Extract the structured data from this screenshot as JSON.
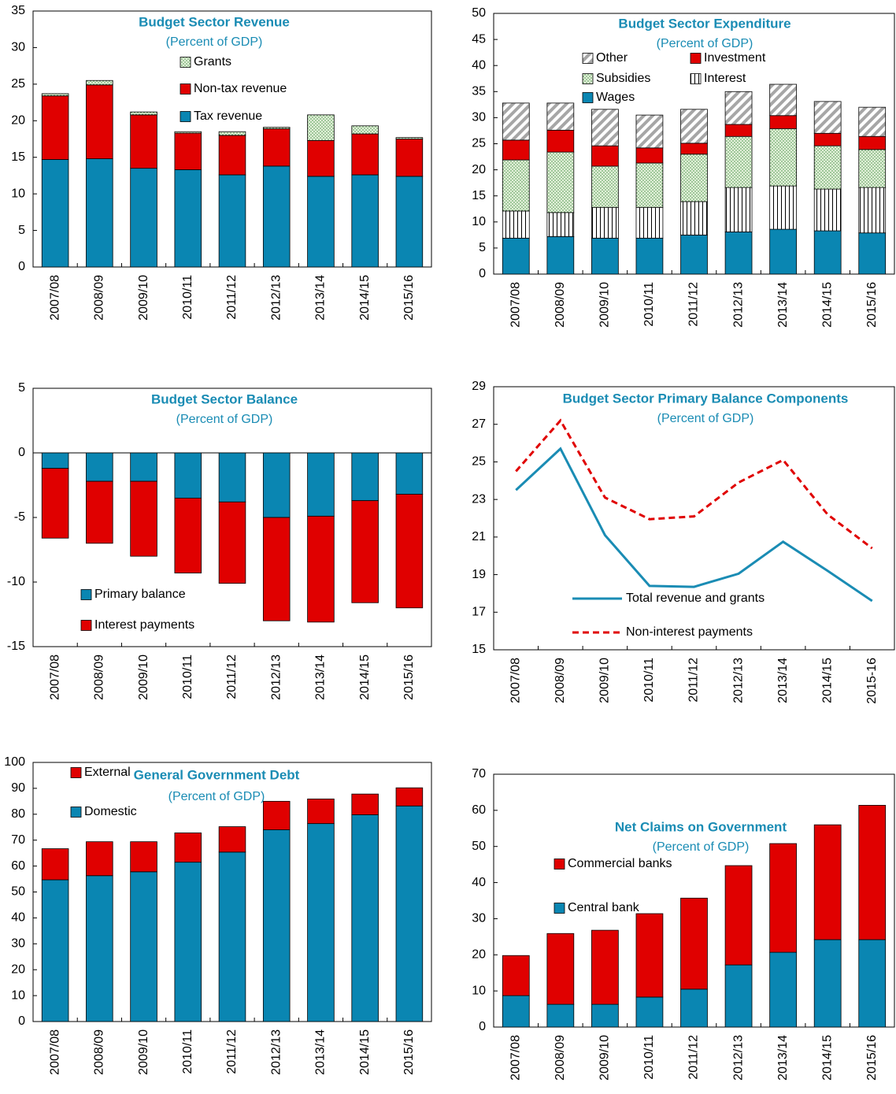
{
  "chart_data": [
    {
      "type": "bar",
      "title": "Budget Sector Revenue",
      "subtitle": "(Percent of GDP)",
      "categories": [
        "2007/08",
        "2008/09",
        "2009/10",
        "2010/11",
        "2011/12",
        "2012/13",
        "2013/14",
        "2014/15",
        "2015/16"
      ],
      "series": [
        {
          "name": "Tax revenue",
          "color": "#0a86b2",
          "values": [
            14.7,
            14.8,
            13.5,
            13.3,
            12.6,
            13.8,
            12.4,
            12.6,
            12.4
          ]
        },
        {
          "name": "Non-tax revenue",
          "color": "#e00000",
          "values": [
            8.7,
            10.1,
            7.3,
            5.0,
            5.4,
            5.1,
            4.9,
            5.6,
            5.1
          ]
        },
        {
          "name": "Grants",
          "color": "#e2f0d9",
          "pattern": "dots",
          "values": [
            0.3,
            0.6,
            0.4,
            0.2,
            0.5,
            0.2,
            3.5,
            1.1,
            0.2
          ]
        }
      ],
      "ylim": [
        0,
        35
      ],
      "yticks": [
        0,
        5,
        10,
        15,
        20,
        25,
        30,
        35
      ]
    },
    {
      "type": "bar",
      "title": "Budget Sector Expenditure",
      "subtitle": "(Percent of GDP)",
      "categories": [
        "2007/08",
        "2008/09",
        "2009/10",
        "2010/11",
        "2011/12",
        "2012/13",
        "2013/14",
        "2014/15",
        "2015/16"
      ],
      "series": [
        {
          "name": "Wages",
          "color": "#0a86b2",
          "values": [
            6.9,
            7.2,
            6.9,
            6.9,
            7.5,
            8.1,
            8.6,
            8.3,
            7.9
          ]
        },
        {
          "name": "Interest",
          "color": "#ffffff",
          "pattern": "vstripes",
          "values": [
            5.2,
            4.6,
            5.9,
            5.9,
            6.4,
            8.5,
            8.3,
            8.0,
            8.7
          ]
        },
        {
          "name": "Subsidies",
          "color": "#e2f0d9",
          "pattern": "dots",
          "values": [
            9.8,
            11.6,
            7.9,
            8.5,
            9.1,
            9.8,
            11.0,
            8.3,
            7.3
          ]
        },
        {
          "name": "Investment",
          "color": "#e00000",
          "values": [
            3.8,
            4.2,
            3.9,
            2.9,
            2.1,
            2.3,
            2.5,
            2.4,
            2.5
          ]
        },
        {
          "name": "Other",
          "color": "#ffffff",
          "pattern": "dstripes",
          "values": [
            7.1,
            5.2,
            7.0,
            6.3,
            6.5,
            6.3,
            6.0,
            6.1,
            5.6
          ]
        }
      ],
      "ylim": [
        0,
        50
      ],
      "yticks": [
        0,
        5,
        10,
        15,
        20,
        25,
        30,
        35,
        40,
        45,
        50
      ]
    },
    {
      "type": "bar",
      "title": "Budget Sector Balance",
      "subtitle": "(Percent of GDP)",
      "categories": [
        "2007/08",
        "2008/09",
        "2009/10",
        "2010/11",
        "2011/12",
        "2012/13",
        "2013/14",
        "2014/15",
        "2015/16"
      ],
      "series": [
        {
          "name": "Primary balance",
          "color": "#0a86b2",
          "values": [
            -1.2,
            -2.2,
            -2.2,
            -3.5,
            -3.8,
            -5.0,
            -4.9,
            -3.7,
            -3.2
          ]
        },
        {
          "name": "Interest payments",
          "color": "#e00000",
          "values": [
            -5.4,
            -4.8,
            -5.8,
            -5.8,
            -6.3,
            -8.0,
            -8.2,
            -7.9,
            -8.8
          ]
        }
      ],
      "ylim": [
        -15,
        5
      ],
      "yticks": [
        -15,
        -10,
        -5,
        0,
        5
      ]
    },
    {
      "type": "line",
      "title": "Budget Sector Primary Balance Components",
      "subtitle": "(Percent of GDP)",
      "categories": [
        "2007/08",
        "2008/09",
        "2009/10",
        "2010/11",
        "2011/12",
        "2012/13",
        "2013/14",
        "2014/15",
        "2015-16"
      ],
      "series": [
        {
          "name": "Total revenue and grants",
          "color": "#1a8cb4",
          "values": [
            23.5,
            25.7,
            21.1,
            18.4,
            18.35,
            19.05,
            20.75,
            19.2,
            17.6
          ]
        },
        {
          "name": "Non-interest payments",
          "color": "#e00000",
          "dashed": true,
          "values": [
            24.5,
            27.2,
            23.1,
            21.95,
            22.1,
            23.9,
            25.1,
            22.2,
            20.4
          ]
        }
      ],
      "ylim": [
        15,
        29
      ],
      "yticks": [
        15,
        17,
        19,
        21,
        23,
        25,
        27,
        29
      ]
    },
    {
      "type": "bar",
      "title": "General Government Debt",
      "subtitle": "(Percent of GDP)",
      "categories": [
        "2007/08",
        "2008/09",
        "2009/10",
        "2010/11",
        "2011/12",
        "2012/13",
        "2013/14",
        "2014/15",
        "2015/16"
      ],
      "series": [
        {
          "name": "Domestic",
          "color": "#0a86b2",
          "values": [
            54.7,
            56.3,
            57.8,
            61.5,
            65.4,
            74.0,
            76.4,
            79.8,
            83.2
          ]
        },
        {
          "name": "External",
          "color": "#e00000",
          "values": [
            12.0,
            13.1,
            11.6,
            11.3,
            9.8,
            11.0,
            9.5,
            8.0,
            7.0
          ]
        }
      ],
      "ylim": [
        0,
        100
      ],
      "yticks": [
        0,
        10,
        20,
        30,
        40,
        50,
        60,
        70,
        80,
        90,
        100
      ]
    },
    {
      "type": "bar",
      "title": "Net Claims on Government",
      "subtitle": "(Percent of GDP)",
      "categories": [
        "2007/08",
        "2008/09",
        "2009/10",
        "2010/11",
        "2011/12",
        "2012/13",
        "2013/14",
        "2014/15",
        "2015/16"
      ],
      "series": [
        {
          "name": "Central bank",
          "color": "#0a86b2",
          "values": [
            8.7,
            6.3,
            6.3,
            8.3,
            10.5,
            17.2,
            20.7,
            24.2,
            24.2
          ]
        },
        {
          "name": "Commercial banks",
          "color": "#e00000",
          "values": [
            11.1,
            19.6,
            20.5,
            23.1,
            25.2,
            27.5,
            30.1,
            31.8,
            37.2
          ]
        }
      ],
      "ylim": [
        0,
        70
      ],
      "yticks": [
        0,
        10,
        20,
        30,
        40,
        50,
        60,
        70
      ]
    }
  ]
}
